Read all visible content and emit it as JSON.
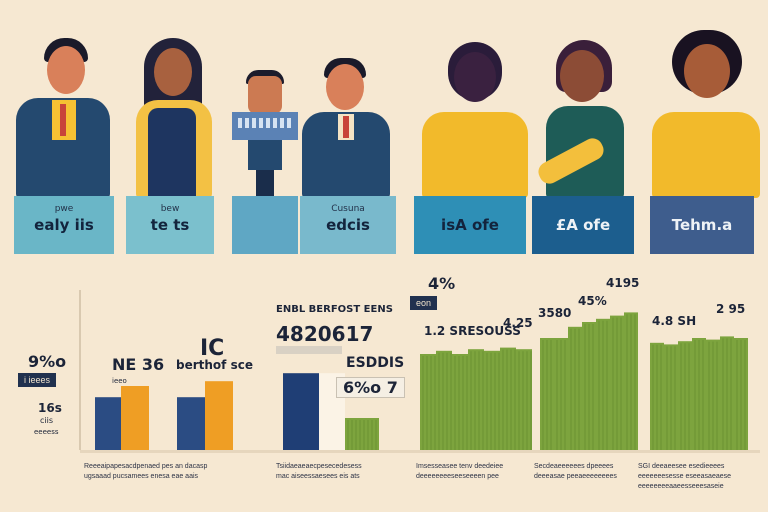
{
  "plaques": [
    {
      "sub": "pwe",
      "main": "ealy iis",
      "color": "#6ab6c7"
    },
    {
      "sub": "bew",
      "main": "te ts",
      "color": "#7bc0cd"
    },
    {
      "sub": "",
      "main": "",
      "color": "#5fa7c4"
    },
    {
      "sub": "Cusuna",
      "main": "edcis",
      "color": "#79b9cc"
    },
    {
      "sub": "",
      "main": "isA ofe",
      "color": "#2e8fb6"
    },
    {
      "sub": "",
      "main": "£A ofe",
      "color": "#1c5e8e"
    },
    {
      "sub": "",
      "main": "Tehm.a",
      "color": "#3e5d8d"
    }
  ],
  "labels": {
    "left_pct": "9%o",
    "left_tag": "i ieees",
    "left_small": "16s",
    "left_small2": "ciis",
    "left_small3": "eeeess",
    "g1_label": "NE 36",
    "g1_small": "ieeo",
    "g2_big": "IC",
    "g2_label": "berthof sce",
    "g3_title": "ENBL BERFOST EENS",
    "g3_value": "4820617",
    "g3_sub": "ESDDIS",
    "g3_box": "6%o 7",
    "g4_pct": "4%",
    "g4_tag": "eon",
    "g4_label": "1.2 SRESOUSS",
    "g4_label2": "4.25",
    "g5_label": "3580",
    "g5_label2": "45%",
    "g5_top": "4195",
    "g6_label": "4.8 SH",
    "g6_label2": "2 95"
  },
  "captions": [
    {
      "line1": "Reeeaipapesacdpenaed pes an dacasp",
      "line2": "ugsaaad pucsamees enesa eae aais"
    },
    {
      "line1": "Tsiidaeaeaecpesecedesess",
      "line2": "mac aiseessaesees eis ats"
    },
    {
      "line1": "Imsesseasee tenv deedeiee",
      "line2": "deeeeeeeeseeseeeen pee"
    },
    {
      "line1": "Secdeaeeeeees dpeeees",
      "line2": "deeeasae peeaeeeeeeees"
    },
    {
      "line1": "SGI deeaeesee esedieeees",
      "line2": "eeeeeeesesse eseeasaeaese",
      "line3": "eeeeeeeeaaeesseeesaseie"
    }
  ],
  "chart_data": {
    "type": "bar",
    "groups": [
      {
        "name": "group-1",
        "series": [
          {
            "color": "#2b4c83",
            "values": [
              33
            ]
          },
          {
            "color": "#ef9e24",
            "values": [
              40
            ]
          }
        ]
      },
      {
        "name": "group-2",
        "series": [
          {
            "color": "#2b4c83",
            "values": [
              33
            ]
          },
          {
            "color": "#ef9e24",
            "values": [
              43
            ]
          }
        ]
      },
      {
        "name": "group-3",
        "series": [
          {
            "color": "#1f3e75",
            "values": [
              48
            ]
          },
          {
            "color": "#fbf3e6",
            "values": [
              48
            ]
          },
          {
            "color": "#7da43e",
            "values": [
              20
            ]
          }
        ]
      },
      {
        "name": "group-4",
        "series": [
          {
            "color": "#7da43e",
            "values": [
              60,
              62,
              60,
              63,
              62,
              64,
              63
            ]
          }
        ]
      },
      {
        "name": "group-5",
        "series": [
          {
            "color": "#7da43e",
            "values": [
              70,
              70,
              77,
              80,
              82,
              84,
              86
            ]
          }
        ]
      },
      {
        "name": "group-6",
        "series": [
          {
            "color": "#7da43e",
            "values": [
              67,
              66,
              68,
              70,
              69,
              71,
              70
            ]
          }
        ]
      }
    ],
    "ylim": [
      0,
      100
    ]
  }
}
